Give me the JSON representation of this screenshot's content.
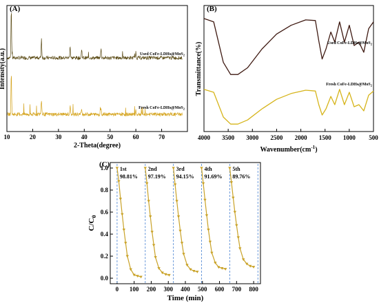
{
  "colors": {
    "used": "#5a4a14",
    "fresh": "#d4a21a",
    "c_line": "#c9a227",
    "cycle_divider": "#5b8fd6",
    "ftir_used": "#3d1810",
    "ftir_fresh": "#d6b41a"
  },
  "chart_data": [
    {
      "type": "line",
      "panel": "(A)",
      "title": "",
      "xlabel": "2-Theta(degree)",
      "ylabel": "Intensity(a.u.)",
      "xlim": [
        10,
        80
      ],
      "x_ticks": [
        10,
        20,
        30,
        40,
        50,
        60,
        70
      ],
      "y_ticks": [],
      "series": [
        {
          "name": "Used CoFe-LDHs@MoS2",
          "peaks": [
            {
              "x": 11.7,
              "y": 1.0
            },
            {
              "x": 23.4,
              "y": 0.4
            },
            {
              "x": 34.5,
              "y": 0.25
            },
            {
              "x": 39.0,
              "y": 0.18
            },
            {
              "x": 46.5,
              "y": 0.2
            },
            {
              "x": 60.0,
              "y": 0.12
            }
          ]
        },
        {
          "name": "Fresh CoFe-LDHs@MoS2",
          "peaks": [
            {
              "x": 11.7,
              "y": 1.0
            },
            {
              "x": 23.4,
              "y": 0.35
            },
            {
              "x": 34.5,
              "y": 0.2
            },
            {
              "x": 39.0,
              "y": 0.15
            },
            {
              "x": 46.5,
              "y": 0.18
            },
            {
              "x": 60.0,
              "y": 0.1
            }
          ]
        }
      ]
    },
    {
      "type": "line",
      "panel": "(B)",
      "title": "",
      "xlabel": "Wavenumber(cm",
      "xlabel_sup": "-1",
      "xlabel_end": ")",
      "ylabel": "Transmittance(%)",
      "xlim": [
        4000,
        500
      ],
      "x_ticks": [
        4000,
        3500,
        3000,
        2500,
        2000,
        1500,
        1000,
        500
      ],
      "series": [
        {
          "name": "Used CoFe-LDHs@MoS2",
          "points": [
            [
              4000,
              0.95
            ],
            [
              3800,
              0.9
            ],
            [
              3600,
              0.3
            ],
            [
              3450,
              0.12
            ],
            [
              3300,
              0.12
            ],
            [
              3100,
              0.22
            ],
            [
              2800,
              0.5
            ],
            [
              2500,
              0.72
            ],
            [
              2200,
              0.85
            ],
            [
              1900,
              0.93
            ],
            [
              1700,
              0.92
            ],
            [
              1630,
              0.62
            ],
            [
              1560,
              0.35
            ],
            [
              1480,
              0.5
            ],
            [
              1380,
              0.75
            ],
            [
              1300,
              0.6
            ],
            [
              1200,
              0.9
            ],
            [
              1100,
              0.6
            ],
            [
              1000,
              0.85
            ],
            [
              900,
              0.55
            ],
            [
              800,
              0.6
            ],
            [
              700,
              0.45
            ],
            [
              600,
              0.8
            ],
            [
              500,
              0.9
            ]
          ]
        },
        {
          "name": "Fresh CoFe-LDHs@MoS2",
          "points": [
            [
              4000,
              0.92
            ],
            [
              3800,
              0.85
            ],
            [
              3600,
              0.25
            ],
            [
              3450,
              0.08
            ],
            [
              3300,
              0.08
            ],
            [
              3100,
              0.18
            ],
            [
              2800,
              0.45
            ],
            [
              2500,
              0.68
            ],
            [
              2200,
              0.82
            ],
            [
              1900,
              0.9
            ],
            [
              1700,
              0.88
            ],
            [
              1630,
              0.55
            ],
            [
              1560,
              0.3
            ],
            [
              1480,
              0.45
            ],
            [
              1380,
              0.75
            ],
            [
              1300,
              0.55
            ],
            [
              1200,
              0.92
            ],
            [
              1100,
              0.55
            ],
            [
              1000,
              0.85
            ],
            [
              900,
              0.5
            ],
            [
              800,
              0.55
            ],
            [
              700,
              0.4
            ],
            [
              600,
              0.78
            ],
            [
              500,
              0.88
            ]
          ]
        }
      ]
    },
    {
      "type": "line",
      "panel": "(C)",
      "title": "",
      "xlabel": "Time (min)",
      "ylabel": "C/C",
      "ylabel_sub": "0",
      "xlim": [
        -40,
        840
      ],
      "ylim": [
        -0.05,
        1.05
      ],
      "x_ticks": [
        0,
        100,
        200,
        300,
        400,
        500,
        600,
        700,
        800
      ],
      "y_ticks": [
        "0.0",
        "0.2",
        "0.4",
        "0.6",
        "0.8",
        "1.0"
      ],
      "cycle_boundaries": [
        0,
        165,
        330,
        495,
        660,
        825
      ],
      "cycles": [
        {
          "label": "1st",
          "removal": "98.81%",
          "x": [
            0,
            10,
            20,
            30,
            40,
            50,
            60,
            80,
            100,
            120,
            140
          ],
          "y": [
            1.0,
            0.88,
            0.72,
            0.58,
            0.44,
            0.32,
            0.2,
            0.08,
            0.03,
            0.02,
            0.012
          ]
        },
        {
          "label": "2nd",
          "removal": "97.19%",
          "x": [
            165,
            175,
            185,
            195,
            205,
            215,
            225,
            245,
            265,
            285,
            305
          ],
          "y": [
            1.0,
            0.86,
            0.7,
            0.56,
            0.42,
            0.3,
            0.19,
            0.09,
            0.05,
            0.035,
            0.028
          ]
        },
        {
          "label": "3rd",
          "removal": "94.15%",
          "x": [
            330,
            340,
            350,
            360,
            370,
            380,
            390,
            410,
            430,
            450,
            470
          ],
          "y": [
            1.0,
            0.85,
            0.7,
            0.56,
            0.43,
            0.32,
            0.22,
            0.12,
            0.08,
            0.065,
            0.058
          ]
        },
        {
          "label": "4th",
          "removal": "91.69%",
          "x": [
            495,
            505,
            515,
            525,
            535,
            545,
            555,
            575,
            595,
            615,
            635
          ],
          "y": [
            1.0,
            0.86,
            0.71,
            0.57,
            0.44,
            0.33,
            0.23,
            0.14,
            0.1,
            0.09,
            0.083
          ]
        },
        {
          "label": "5th",
          "removal": "89.76%",
          "x": [
            660,
            670,
            680,
            690,
            700,
            710,
            720,
            740,
            760,
            780,
            800
          ],
          "y": [
            1.0,
            0.87,
            0.73,
            0.6,
            0.48,
            0.37,
            0.27,
            0.17,
            0.13,
            0.11,
            0.102
          ]
        }
      ]
    }
  ]
}
